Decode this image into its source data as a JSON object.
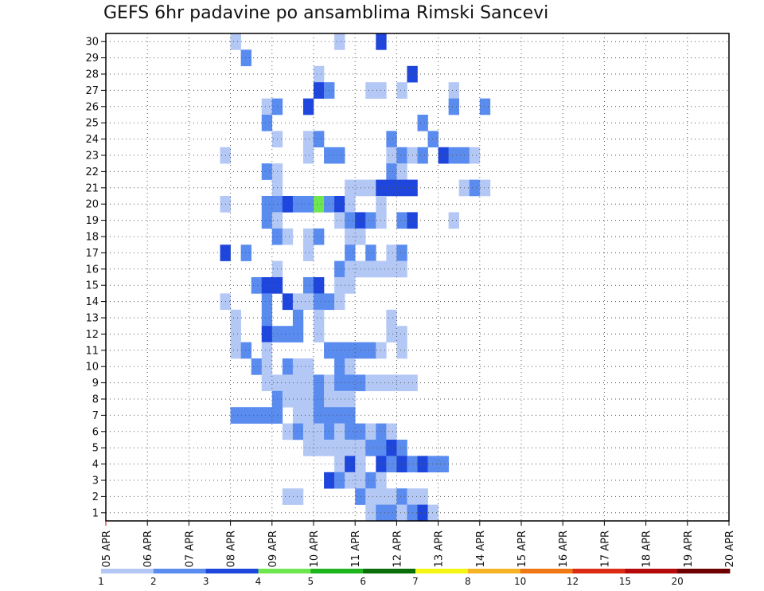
{
  "chart_data": {
    "type": "heatmap",
    "title": "GEFS 6hr padavine po ansamblima Rimski Sancevi",
    "xlabel": "",
    "ylabel": "",
    "x_tick_labels": [
      "05 APR",
      "06 APR",
      "07 APR",
      "08 APR",
      "09 APR",
      "10 APR",
      "11 APR",
      "12 APR",
      "13 APR",
      "14 APR",
      "15 APR",
      "16 APR",
      "17 APR",
      "18 APR",
      "19 APR",
      "20 APR"
    ],
    "y_tick_labels": [
      "1",
      "2",
      "3",
      "4",
      "5",
      "6",
      "7",
      "8",
      "9",
      "10",
      "11",
      "12",
      "13",
      "14",
      "15",
      "16",
      "17",
      "18",
      "19",
      "20",
      "21",
      "22",
      "23",
      "24",
      "25",
      "26",
      "27",
      "28",
      "29",
      "30"
    ],
    "x_unit": "6-hour step from 05 APR 00Z",
    "x_range": [
      0,
      60
    ],
    "y_range": [
      0.5,
      30.5
    ],
    "grid": true,
    "colorbar": {
      "labels": [
        "1",
        "2",
        "3",
        "4",
        "5",
        "6",
        "7",
        "8",
        "10",
        "12",
        "15",
        "20"
      ],
      "colors": [
        "#b4c8f5",
        "#5a8cf0",
        "#1e46dc",
        "#6ee650",
        "#1eb41e",
        "#0a6e0a",
        "#f5f514",
        "#f5b428",
        "#f07814",
        "#dc2d14",
        "#b40a0a",
        "#6e0000"
      ]
    },
    "cells": [
      [
        16,
        30,
        1
      ],
      [
        56,
        30,
        1
      ],
      [
        66,
        30,
        1
      ],
      [
        70,
        30,
        3
      ],
      [
        18,
        29,
        1
      ],
      [
        57,
        29,
        2
      ],
      [
        64,
        28,
        1
      ],
      [
        73,
        28,
        3
      ],
      [
        70,
        27,
        1
      ],
      [
        72,
        27,
        1
      ],
      [
        64,
        27,
        3
      ],
      [
        65,
        27,
        2
      ],
      [
        69,
        27,
        1
      ],
      [
        77,
        27,
        1
      ],
      [
        59,
        26,
        1
      ],
      [
        60,
        26,
        2
      ],
      [
        63,
        26,
        3
      ],
      [
        77,
        26,
        2
      ],
      [
        80,
        26,
        2
      ],
      [
        59,
        25,
        2
      ],
      [
        74,
        25,
        2
      ],
      [
        60,
        24,
        1
      ],
      [
        63,
        24,
        1
      ],
      [
        64,
        24,
        2
      ],
      [
        71,
        24,
        2
      ],
      [
        75,
        24,
        2
      ],
      [
        55,
        23,
        1
      ],
      [
        63,
        23,
        1
      ],
      [
        65,
        23,
        2
      ],
      [
        66,
        23,
        2
      ],
      [
        71,
        23,
        1
      ],
      [
        72,
        23,
        2
      ],
      [
        73,
        23,
        1
      ],
      [
        74,
        23,
        2
      ],
      [
        76,
        23,
        3
      ],
      [
        77,
        23,
        2
      ],
      [
        78,
        23,
        2
      ],
      [
        79,
        23,
        1
      ],
      [
        59,
        22,
        2
      ],
      [
        60,
        22,
        1
      ],
      [
        71,
        22,
        2
      ],
      [
        72,
        22,
        1
      ],
      [
        60,
        21,
        1
      ],
      [
        67,
        21,
        1
      ],
      [
        68,
        21,
        1
      ],
      [
        69,
        21,
        1
      ],
      [
        70,
        21,
        3
      ],
      [
        71,
        21,
        3
      ],
      [
        72,
        21,
        3
      ],
      [
        73,
        21,
        3
      ],
      [
        78,
        21,
        1
      ],
      [
        79,
        21,
        2
      ],
      [
        80,
        21,
        1
      ],
      [
        55,
        20,
        1
      ],
      [
        59,
        20,
        2
      ],
      [
        60,
        20,
        2
      ],
      [
        61,
        20,
        3
      ],
      [
        62,
        20,
        2
      ],
      [
        63,
        20,
        2
      ],
      [
        64,
        20,
        4
      ],
      [
        65,
        20,
        2
      ],
      [
        66,
        20,
        3
      ],
      [
        67,
        20,
        1
      ],
      [
        70,
        20,
        1
      ],
      [
        59,
        19,
        2
      ],
      [
        60,
        19,
        1
      ],
      [
        66,
        19,
        1
      ],
      [
        67,
        19,
        2
      ],
      [
        68,
        19,
        3
      ],
      [
        69,
        19,
        2
      ],
      [
        70,
        19,
        1
      ],
      [
        72,
        19,
        2
      ],
      [
        73,
        19,
        3
      ],
      [
        77,
        19,
        1
      ],
      [
        60,
        18,
        2
      ],
      [
        61,
        18,
        1
      ],
      [
        63,
        18,
        1
      ],
      [
        64,
        18,
        2
      ],
      [
        67,
        18,
        1
      ],
      [
        68,
        18,
        1
      ],
      [
        55,
        17,
        3
      ],
      [
        57,
        17,
        2
      ],
      [
        63,
        17,
        1
      ],
      [
        67,
        17,
        2
      ],
      [
        69,
        17,
        2
      ],
      [
        71,
        17,
        1
      ],
      [
        72,
        17,
        2
      ],
      [
        60,
        16,
        1
      ],
      [
        66,
        16,
        2
      ],
      [
        67,
        16,
        1
      ],
      [
        68,
        16,
        1
      ],
      [
        69,
        16,
        1
      ],
      [
        70,
        16,
        1
      ],
      [
        71,
        16,
        1
      ],
      [
        72,
        16,
        1
      ],
      [
        58,
        15,
        2
      ],
      [
        59,
        15,
        3
      ],
      [
        60,
        15,
        3
      ],
      [
        63,
        15,
        2
      ],
      [
        64,
        15,
        3
      ],
      [
        66,
        15,
        1
      ],
      [
        67,
        15,
        1
      ],
      [
        55,
        14,
        1
      ],
      [
        59,
        14,
        2
      ],
      [
        61,
        14,
        3
      ],
      [
        62,
        14,
        1
      ],
      [
        63,
        14,
        1
      ],
      [
        64,
        14,
        2
      ],
      [
        65,
        14,
        2
      ],
      [
        66,
        14,
        1
      ],
      [
        56,
        13,
        1
      ],
      [
        59,
        13,
        2
      ],
      [
        62,
        13,
        2
      ],
      [
        64,
        13,
        1
      ],
      [
        71,
        13,
        1
      ],
      [
        56,
        12,
        1
      ],
      [
        59,
        12,
        3
      ],
      [
        60,
        12,
        2
      ],
      [
        61,
        12,
        2
      ],
      [
        62,
        12,
        2
      ],
      [
        64,
        12,
        1
      ],
      [
        71,
        12,
        1
      ],
      [
        72,
        12,
        1
      ],
      [
        56,
        11,
        1
      ],
      [
        57,
        11,
        2
      ],
      [
        59,
        11,
        1
      ],
      [
        65,
        11,
        2
      ],
      [
        66,
        11,
        2
      ],
      [
        67,
        11,
        2
      ],
      [
        68,
        11,
        2
      ],
      [
        69,
        11,
        2
      ],
      [
        70,
        11,
        1
      ],
      [
        72,
        11,
        1
      ],
      [
        58,
        10,
        2
      ],
      [
        59,
        10,
        1
      ],
      [
        61,
        10,
        2
      ],
      [
        62,
        10,
        1
      ],
      [
        63,
        10,
        1
      ],
      [
        66,
        10,
        2
      ],
      [
        67,
        10,
        1
      ],
      [
        59,
        9,
        1
      ],
      [
        60,
        9,
        1
      ],
      [
        61,
        9,
        1
      ],
      [
        62,
        9,
        1
      ],
      [
        63,
        9,
        1
      ],
      [
        64,
        9,
        2
      ],
      [
        65,
        9,
        1
      ],
      [
        66,
        9,
        2
      ],
      [
        67,
        9,
        2
      ],
      [
        68,
        9,
        2
      ],
      [
        69,
        9,
        1
      ],
      [
        70,
        9,
        1
      ],
      [
        71,
        9,
        1
      ],
      [
        72,
        9,
        1
      ],
      [
        73,
        9,
        1
      ],
      [
        60,
        8,
        2
      ],
      [
        61,
        8,
        1
      ],
      [
        62,
        8,
        1
      ],
      [
        63,
        8,
        1
      ],
      [
        64,
        8,
        2
      ],
      [
        65,
        8,
        1
      ],
      [
        66,
        8,
        1
      ],
      [
        67,
        8,
        1
      ],
      [
        56,
        7,
        2
      ],
      [
        57,
        7,
        2
      ],
      [
        58,
        7,
        2
      ],
      [
        59,
        7,
        2
      ],
      [
        60,
        7,
        2
      ],
      [
        62,
        7,
        1
      ],
      [
        63,
        7,
        1
      ],
      [
        64,
        7,
        2
      ],
      [
        65,
        7,
        2
      ],
      [
        66,
        7,
        2
      ],
      [
        67,
        7,
        2
      ],
      [
        61,
        6,
        1
      ],
      [
        62,
        6,
        2
      ],
      [
        63,
        6,
        1
      ],
      [
        64,
        6,
        1
      ],
      [
        65,
        6,
        2
      ],
      [
        66,
        6,
        1
      ],
      [
        67,
        6,
        2
      ],
      [
        68,
        6,
        2
      ],
      [
        69,
        6,
        1
      ],
      [
        70,
        6,
        2
      ],
      [
        71,
        6,
        1
      ],
      [
        63,
        5,
        1
      ],
      [
        64,
        5,
        1
      ],
      [
        65,
        5,
        1
      ],
      [
        66,
        5,
        1
      ],
      [
        67,
        5,
        1
      ],
      [
        68,
        5,
        1
      ],
      [
        69,
        5,
        2
      ],
      [
        70,
        5,
        2
      ],
      [
        71,
        5,
        3
      ],
      [
        72,
        5,
        2
      ],
      [
        66,
        4,
        1
      ],
      [
        67,
        4,
        3
      ],
      [
        68,
        4,
        1
      ],
      [
        70,
        4,
        3
      ],
      [
        71,
        4,
        2
      ],
      [
        72,
        4,
        3
      ],
      [
        73,
        4,
        2
      ],
      [
        74,
        4,
        3
      ],
      [
        75,
        4,
        2
      ],
      [
        76,
        4,
        2
      ],
      [
        65,
        3,
        3
      ],
      [
        66,
        3,
        2
      ],
      [
        67,
        3,
        1
      ],
      [
        68,
        3,
        1
      ],
      [
        69,
        3,
        2
      ],
      [
        70,
        3,
        1
      ],
      [
        61,
        2,
        1
      ],
      [
        62,
        2,
        1
      ],
      [
        68,
        2,
        2
      ],
      [
        69,
        2,
        1
      ],
      [
        70,
        2,
        1
      ],
      [
        71,
        2,
        1
      ],
      [
        72,
        2,
        2
      ],
      [
        73,
        2,
        1
      ],
      [
        74,
        2,
        1
      ],
      [
        69,
        1,
        1
      ],
      [
        70,
        1,
        2
      ],
      [
        71,
        1,
        2
      ],
      [
        72,
        1,
        1
      ],
      [
        73,
        1,
        2
      ],
      [
        74,
        1,
        3
      ],
      [
        75,
        1,
        1
      ]
    ],
    "cells_note": "cell format: [x_step_from_start, member, color_class(1-12)]"
  }
}
